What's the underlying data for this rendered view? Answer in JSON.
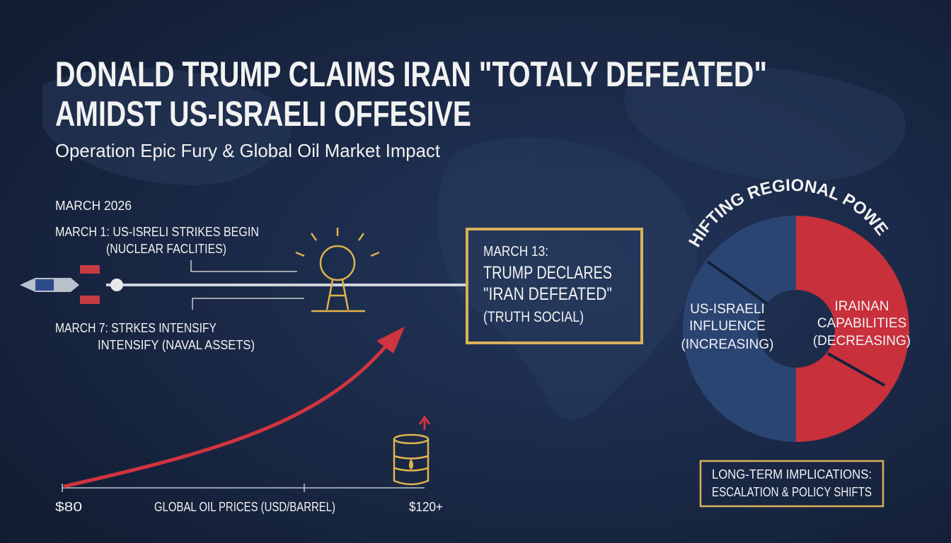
{
  "header": {
    "title_line1": "DONALD TRUMP CLAIMS IRAN \"TOTALY DEFEATED\"",
    "title_line2": "AMIDST US-ISRAELI OFFESIVE",
    "subtitle": "Operation Epic Fury & Global Oil Market Impact"
  },
  "timeline": {
    "label": "MARCH 2026",
    "events": [
      {
        "line1": "MARCH 1: US-ISRELI STRIKES BEGIN",
        "line2": "(NUCLEAR FACLITIES)"
      },
      {
        "line1": "MARCH 7: STRKES INTENSIFY",
        "line2": "INTENSIFY (NAVAL ASSETS)"
      }
    ]
  },
  "callout": {
    "lines": [
      "MARCH 13:",
      "TRUMP DECLARES",
      "\"IRAN DEFEATED\"",
      "(TRUTH SOCIAL)"
    ]
  },
  "oil": {
    "start": "$80",
    "axis_label": "GLOBAL OIL PRICES (USD/BARREL)",
    "end": "$120+"
  },
  "power": {
    "title": "SHIFTING REGIONAL POWER",
    "left": [
      "US-ISRAELI",
      "INFLUENCE",
      "(INCREASING)"
    ],
    "right": [
      "IRAINAN",
      "CAPABILITIES",
      "(DECREASING)"
    ]
  },
  "footer_box": {
    "lines": [
      "LONG-TERM IMPLICATIONS:",
      "ESCALATION & POLICY SHIFTS"
    ]
  }
}
